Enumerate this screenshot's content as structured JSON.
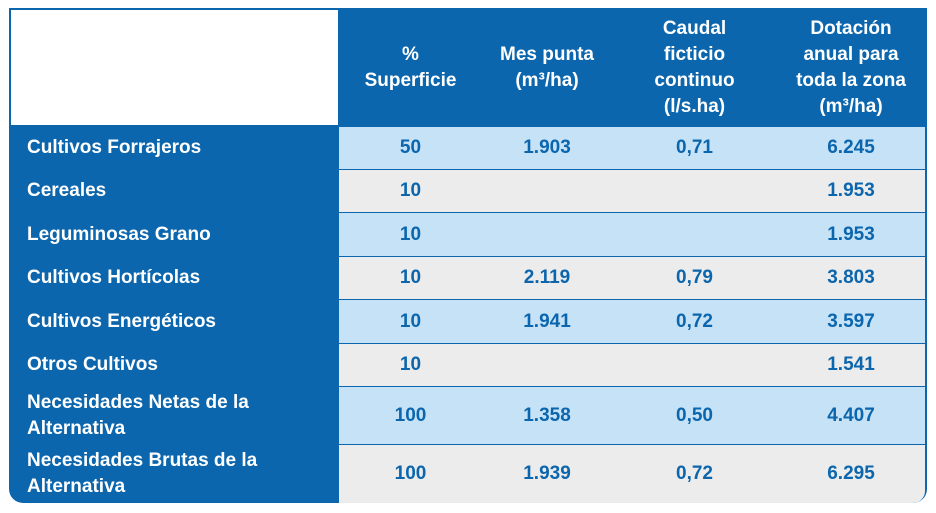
{
  "table": {
    "headers": [
      [
        "%",
        "Superficie"
      ],
      [
        "Mes punta",
        "(m³/ha)"
      ],
      [
        "Caudal",
        "ficticio",
        "continuo",
        "(l/s.ha)"
      ],
      [
        "Dotación",
        "anual para",
        "toda la zona",
        "(m³/ha)"
      ]
    ],
    "rows": [
      {
        "label": [
          "Cultivos Forrajeros"
        ],
        "values": [
          "50",
          "1.903",
          "0,71",
          "6.245"
        ]
      },
      {
        "label": [
          "Cereales"
        ],
        "values": [
          "10",
          "",
          "",
          "1.953"
        ]
      },
      {
        "label": [
          "Leguminosas Grano"
        ],
        "values": [
          "10",
          "",
          "",
          "1.953"
        ]
      },
      {
        "label": [
          "Cultivos Hortícolas"
        ],
        "values": [
          "10",
          "2.119",
          "0,79",
          "3.803"
        ]
      },
      {
        "label": [
          "Cultivos Energéticos"
        ],
        "values": [
          "10",
          "1.941",
          "0,72",
          "3.597"
        ]
      },
      {
        "label": [
          "Otros Cultivos"
        ],
        "values": [
          "10",
          "",
          "",
          "1.541"
        ]
      },
      {
        "label": [
          "Necesidades Netas de la",
          "Alternativa"
        ],
        "values": [
          "100",
          "1.358",
          "0,50",
          "4.407"
        ]
      },
      {
        "label": [
          "Necesidades Brutas de la",
          "Alternativa"
        ],
        "values": [
          "100",
          "1.939",
          "0,72",
          "6.295"
        ]
      }
    ],
    "colors": {
      "header_bg": "#0b66ad",
      "row_blue": "#c5e2f7",
      "row_grey": "#ececec",
      "value_text": "#0b66ad"
    }
  }
}
